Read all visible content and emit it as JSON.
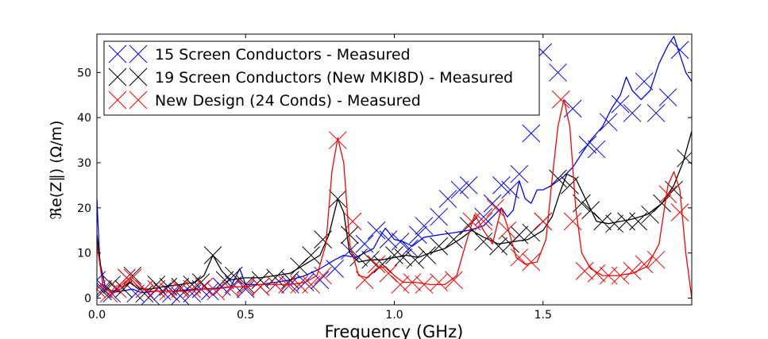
{
  "chart_data": {
    "type": "line",
    "xlabel": "Frequency (GHz)",
    "ylabel": "ℜe(Z∥) (Ω/m)",
    "xlim": [
      0.0,
      2.0
    ],
    "ylim": [
      -1.5,
      58.5
    ],
    "xticks": [
      0.0,
      0.5,
      1.0,
      1.5
    ],
    "xtick_labels": [
      "0.0",
      "0.5",
      "1.0",
      "1.5"
    ],
    "yticks": [
      0,
      10,
      20,
      30,
      40,
      50
    ],
    "ytick_labels": [
      "0",
      "10",
      "20",
      "30",
      "40",
      "50"
    ],
    "grid": false,
    "legend_position": "top-left",
    "series": [
      {
        "name": "15 Screen Conductors - Measured",
        "color": "#0000ff",
        "line": [
          [
            0.0,
            22
          ],
          [
            0.01,
            8
          ],
          [
            0.03,
            2
          ],
          [
            0.05,
            1.2
          ],
          [
            0.08,
            1.5
          ],
          [
            0.12,
            2
          ],
          [
            0.15,
            1.2
          ],
          [
            0.2,
            1.5
          ],
          [
            0.25,
            1.5
          ],
          [
            0.3,
            1.8
          ],
          [
            0.35,
            2
          ],
          [
            0.4,
            2.2
          ],
          [
            0.45,
            2.5
          ],
          [
            0.48,
            6.5
          ],
          [
            0.5,
            3
          ],
          [
            0.55,
            3
          ],
          [
            0.6,
            3.5
          ],
          [
            0.65,
            4
          ],
          [
            0.7,
            5
          ],
          [
            0.75,
            6.5
          ],
          [
            0.8,
            8.5
          ],
          [
            0.83,
            9.5
          ],
          [
            0.87,
            9
          ],
          [
            0.9,
            10
          ],
          [
            0.93,
            11
          ],
          [
            0.95,
            13.5
          ],
          [
            0.97,
            15.5
          ],
          [
            1.0,
            13
          ],
          [
            1.03,
            12.5
          ],
          [
            1.06,
            11.5
          ],
          [
            1.1,
            13.5
          ],
          [
            1.15,
            14
          ],
          [
            1.2,
            14.5
          ],
          [
            1.25,
            15
          ],
          [
            1.3,
            16
          ],
          [
            1.33,
            18
          ],
          [
            1.36,
            20
          ],
          [
            1.38,
            18
          ],
          [
            1.4,
            19.5
          ],
          [
            1.42,
            26
          ],
          [
            1.44,
            22
          ],
          [
            1.46,
            21
          ],
          [
            1.48,
            24
          ],
          [
            1.5,
            24
          ],
          [
            1.53,
            25
          ],
          [
            1.57,
            27
          ],
          [
            1.6,
            29
          ],
          [
            1.63,
            32
          ],
          [
            1.66,
            35
          ],
          [
            1.7,
            38
          ],
          [
            1.73,
            42
          ],
          [
            1.76,
            45
          ],
          [
            1.78,
            49
          ],
          [
            1.8,
            46
          ],
          [
            1.83,
            44
          ],
          [
            1.86,
            46
          ],
          [
            1.89,
            52
          ],
          [
            1.92,
            56
          ],
          [
            1.94,
            58
          ],
          [
            1.96,
            54
          ],
          [
            1.98,
            50
          ],
          [
            2.0,
            48
          ]
        ],
        "markers": [
          [
            0.0,
            4
          ],
          [
            0.02,
            2
          ],
          [
            0.05,
            1
          ],
          [
            0.1,
            4.5
          ],
          [
            0.13,
            1
          ],
          [
            0.18,
            0.5
          ],
          [
            0.22,
            1.5
          ],
          [
            0.25,
            1
          ],
          [
            0.28,
            0.5
          ],
          [
            0.32,
            1
          ],
          [
            0.35,
            2
          ],
          [
            0.38,
            1.5
          ],
          [
            0.42,
            2.5
          ],
          [
            0.46,
            3
          ],
          [
            0.5,
            2
          ],
          [
            0.55,
            2.5
          ],
          [
            0.6,
            3
          ],
          [
            0.65,
            3
          ],
          [
            0.7,
            3.5
          ],
          [
            0.75,
            4
          ],
          [
            0.8,
            6.5
          ],
          [
            0.85,
            10.5
          ],
          [
            0.9,
            12
          ],
          [
            0.94,
            15
          ],
          [
            0.98,
            13
          ],
          [
            1.02,
            12.5
          ],
          [
            1.05,
            11
          ],
          [
            1.08,
            14
          ],
          [
            1.1,
            16
          ],
          [
            1.15,
            18
          ],
          [
            1.18,
            22
          ],
          [
            1.22,
            24
          ],
          [
            1.25,
            25
          ],
          [
            1.3,
            18
          ],
          [
            1.33,
            21
          ],
          [
            1.36,
            25
          ],
          [
            1.39,
            24
          ],
          [
            1.42,
            27.5
          ],
          [
            1.46,
            36.5
          ],
          [
            1.5,
            54.5
          ],
          [
            1.55,
            50
          ],
          [
            1.6,
            42
          ],
          [
            1.65,
            34
          ],
          [
            1.68,
            33
          ],
          [
            1.72,
            39
          ],
          [
            1.76,
            43
          ],
          [
            1.8,
            41
          ],
          [
            1.84,
            48
          ],
          [
            1.88,
            41
          ],
          [
            1.92,
            44.5
          ],
          [
            1.96,
            55
          ]
        ]
      },
      {
        "name": "19 Screen Conductors (New MKI8D) - Measured",
        "color": "#000000",
        "line": [
          [
            0.0,
            14
          ],
          [
            0.02,
            3
          ],
          [
            0.05,
            1.5
          ],
          [
            0.08,
            2
          ],
          [
            0.11,
            3.5
          ],
          [
            0.14,
            2
          ],
          [
            0.18,
            2
          ],
          [
            0.22,
            2.5
          ],
          [
            0.28,
            3
          ],
          [
            0.33,
            3.5
          ],
          [
            0.36,
            5
          ],
          [
            0.39,
            9.5
          ],
          [
            0.42,
            6
          ],
          [
            0.45,
            4
          ],
          [
            0.5,
            4.5
          ],
          [
            0.55,
            4.5
          ],
          [
            0.6,
            5
          ],
          [
            0.65,
            5.5
          ],
          [
            0.7,
            7.5
          ],
          [
            0.75,
            9.5
          ],
          [
            0.78,
            14
          ],
          [
            0.81,
            22
          ],
          [
            0.83,
            19
          ],
          [
            0.85,
            10
          ],
          [
            0.88,
            8
          ],
          [
            0.92,
            8.5
          ],
          [
            0.96,
            8.5
          ],
          [
            1.0,
            9
          ],
          [
            1.04,
            9.5
          ],
          [
            1.08,
            9
          ],
          [
            1.12,
            10
          ],
          [
            1.17,
            11
          ],
          [
            1.22,
            13
          ],
          [
            1.26,
            15
          ],
          [
            1.3,
            13.5
          ],
          [
            1.35,
            12
          ],
          [
            1.4,
            12.5
          ],
          [
            1.45,
            13
          ],
          [
            1.5,
            15
          ],
          [
            1.53,
            18
          ],
          [
            1.56,
            24
          ],
          [
            1.58,
            27.5
          ],
          [
            1.61,
            26.5
          ],
          [
            1.65,
            21
          ],
          [
            1.68,
            17
          ],
          [
            1.72,
            16.5
          ],
          [
            1.76,
            17
          ],
          [
            1.8,
            17.5
          ],
          [
            1.85,
            18.5
          ],
          [
            1.9,
            21
          ],
          [
            1.94,
            25
          ],
          [
            1.97,
            30
          ],
          [
            2.0,
            37
          ]
        ],
        "markers": [
          [
            0.02,
            1.5
          ],
          [
            0.05,
            3
          ],
          [
            0.09,
            2
          ],
          [
            0.12,
            5
          ],
          [
            0.16,
            1
          ],
          [
            0.2,
            3
          ],
          [
            0.24,
            2.5
          ],
          [
            0.28,
            2.5
          ],
          [
            0.32,
            3
          ],
          [
            0.35,
            3.5
          ],
          [
            0.39,
            9.5
          ],
          [
            0.43,
            4
          ],
          [
            0.46,
            5
          ],
          [
            0.5,
            3
          ],
          [
            0.55,
            4
          ],
          [
            0.6,
            4.5
          ],
          [
            0.65,
            4
          ],
          [
            0.68,
            7
          ],
          [
            0.72,
            9.5
          ],
          [
            0.76,
            13
          ],
          [
            0.81,
            22
          ],
          [
            0.85,
            14
          ],
          [
            0.88,
            9
          ],
          [
            0.92,
            8.5
          ],
          [
            0.96,
            7.5
          ],
          [
            1.0,
            9.5
          ],
          [
            1.03,
            9
          ],
          [
            1.07,
            8.5
          ],
          [
            1.11,
            9.5
          ],
          [
            1.15,
            11.5
          ],
          [
            1.2,
            13
          ],
          [
            1.25,
            16
          ],
          [
            1.3,
            12.5
          ],
          [
            1.35,
            11.5
          ],
          [
            1.39,
            12
          ],
          [
            1.42,
            14
          ],
          [
            1.46,
            14.5
          ],
          [
            1.5,
            17
          ],
          [
            1.55,
            26.5
          ],
          [
            1.59,
            25
          ],
          [
            1.63,
            21
          ],
          [
            1.66,
            19.5
          ],
          [
            1.7,
            17
          ],
          [
            1.74,
            16.5
          ],
          [
            1.78,
            17
          ],
          [
            1.82,
            17
          ],
          [
            1.86,
            18.5
          ],
          [
            1.9,
            21
          ],
          [
            1.94,
            24
          ],
          [
            1.98,
            31
          ]
        ]
      },
      {
        "name": "New Design (24 Conds) - Measured",
        "color": "#ff0000",
        "line": [
          [
            0.0,
            12
          ],
          [
            0.02,
            3
          ],
          [
            0.05,
            1
          ],
          [
            0.08,
            2
          ],
          [
            0.11,
            4.5
          ],
          [
            0.14,
            2.5
          ],
          [
            0.18,
            1.5
          ],
          [
            0.22,
            1.5
          ],
          [
            0.26,
            1.5
          ],
          [
            0.3,
            1.5
          ],
          [
            0.35,
            2
          ],
          [
            0.4,
            2
          ],
          [
            0.45,
            2.5
          ],
          [
            0.5,
            2.5
          ],
          [
            0.55,
            3
          ],
          [
            0.6,
            3
          ],
          [
            0.65,
            3
          ],
          [
            0.7,
            3.5
          ],
          [
            0.74,
            5
          ],
          [
            0.77,
            12
          ],
          [
            0.79,
            28
          ],
          [
            0.81,
            35.5
          ],
          [
            0.83,
            30
          ],
          [
            0.85,
            12
          ],
          [
            0.88,
            5
          ],
          [
            0.91,
            4.5
          ],
          [
            0.94,
            6.5
          ],
          [
            0.97,
            7
          ],
          [
            1.0,
            5
          ],
          [
            1.03,
            3.5
          ],
          [
            1.07,
            3.5
          ],
          [
            1.12,
            3
          ],
          [
            1.17,
            3
          ],
          [
            1.21,
            5
          ],
          [
            1.24,
            12
          ],
          [
            1.27,
            18.5
          ],
          [
            1.3,
            15
          ],
          [
            1.33,
            12
          ],
          [
            1.36,
            20
          ],
          [
            1.38,
            16
          ],
          [
            1.41,
            9
          ],
          [
            1.44,
            7.5
          ],
          [
            1.48,
            8
          ],
          [
            1.51,
            13
          ],
          [
            1.53,
            26
          ],
          [
            1.55,
            38
          ],
          [
            1.57,
            44
          ],
          [
            1.59,
            38
          ],
          [
            1.61,
            20
          ],
          [
            1.63,
            10
          ],
          [
            1.66,
            6.5
          ],
          [
            1.7,
            5
          ],
          [
            1.75,
            5
          ],
          [
            1.8,
            5.5
          ],
          [
            1.85,
            7
          ],
          [
            1.89,
            12
          ],
          [
            1.92,
            25
          ],
          [
            1.94,
            28
          ],
          [
            1.96,
            24
          ],
          [
            1.98,
            10
          ],
          [
            2.0,
            0
          ]
        ],
        "markers": [
          [
            0.0,
            2
          ],
          [
            0.04,
            1
          ],
          [
            0.07,
            2
          ],
          [
            0.1,
            4.5
          ],
          [
            0.12,
            4.5
          ],
          [
            0.16,
            2
          ],
          [
            0.2,
            2
          ],
          [
            0.24,
            1.5
          ],
          [
            0.28,
            2
          ],
          [
            0.32,
            2
          ],
          [
            0.36,
            2.5
          ],
          [
            0.4,
            1.5
          ],
          [
            0.45,
            2
          ],
          [
            0.5,
            2.5
          ],
          [
            0.55,
            2.5
          ],
          [
            0.6,
            3
          ],
          [
            0.64,
            3
          ],
          [
            0.68,
            3
          ],
          [
            0.72,
            3
          ],
          [
            0.76,
            5
          ],
          [
            0.81,
            35
          ],
          [
            0.86,
            17
          ],
          [
            0.9,
            4
          ],
          [
            0.94,
            7.5
          ],
          [
            0.98,
            5.5
          ],
          [
            1.02,
            3
          ],
          [
            1.06,
            3.5
          ],
          [
            1.1,
            3
          ],
          [
            1.15,
            3.5
          ],
          [
            1.2,
            4
          ],
          [
            1.26,
            17
          ],
          [
            1.3,
            17
          ],
          [
            1.34,
            20
          ],
          [
            1.38,
            15
          ],
          [
            1.42,
            9
          ],
          [
            1.46,
            8
          ],
          [
            1.5,
            17
          ],
          [
            1.56,
            44
          ],
          [
            1.6,
            17
          ],
          [
            1.64,
            6
          ],
          [
            1.68,
            5.5
          ],
          [
            1.72,
            5
          ],
          [
            1.76,
            5
          ],
          [
            1.8,
            6
          ],
          [
            1.84,
            7.5
          ],
          [
            1.88,
            8.5
          ],
          [
            1.92,
            23
          ],
          [
            1.96,
            19
          ]
        ]
      }
    ]
  }
}
